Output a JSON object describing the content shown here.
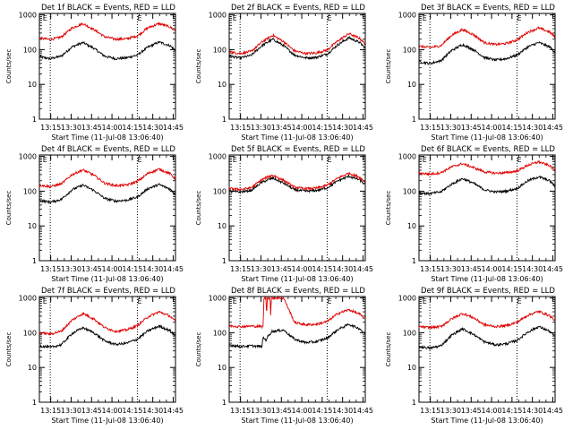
{
  "figure": {
    "shared": {
      "ylabel": "Counts/sec",
      "xlabel": "Start Time (11-Jul-08 13:06:40)",
      "x_ticks": [
        "13:15",
        "13:30",
        "13:45",
        "14:00",
        "14:15",
        "14:30",
        "14:45"
      ],
      "y_ticks": [
        "1",
        "10",
        "100",
        "1000"
      ]
    },
    "colors": {
      "events": "#000000",
      "lld": "#e00000",
      "axes": "#000000"
    }
  },
  "chart_data": [
    {
      "type": "line",
      "title": "Det 1f BLACK = Events, RED = LLD",
      "xlabel": "Start Time (11-Jul-08 13:06:40)",
      "ylabel": "Counts/sec",
      "x_unit": "minutes after 13:06:40",
      "xlim": [
        0,
        100
      ],
      "ylim": [
        1,
        1100
      ],
      "yscale": "log",
      "markers": [
        "E",
        "E"
      ],
      "marker_x": [
        2.5,
        72
      ],
      "vlines_x": [
        8,
        72
      ],
      "series": [
        {
          "name": "Events",
          "color": "#000000",
          "x": [
            0,
            8,
            16,
            24,
            32,
            40,
            48,
            56,
            64,
            72,
            80,
            88,
            96,
            100
          ],
          "y": [
            62,
            55,
            65,
            120,
            160,
            110,
            65,
            55,
            58,
            70,
            120,
            165,
            130,
            95
          ]
        },
        {
          "name": "LLD",
          "color": "#e00000",
          "x": [
            0,
            8,
            16,
            24,
            32,
            40,
            48,
            56,
            64,
            72,
            80,
            88,
            96,
            100
          ],
          "y": [
            215,
            195,
            230,
            420,
            560,
            380,
            235,
            200,
            205,
            250,
            430,
            560,
            450,
            340
          ]
        }
      ]
    },
    {
      "type": "line",
      "title": "Det 2f BLACK = Events, RED = LLD",
      "xlabel": "Start Time (11-Jul-08 13:06:40)",
      "ylabel": "Counts/sec",
      "x_unit": "minutes after 13:06:40",
      "xlim": [
        0,
        100
      ],
      "ylim": [
        1,
        1100
      ],
      "yscale": "log",
      "markers": [
        "E",
        "E"
      ],
      "marker_x": [
        2.5,
        72
      ],
      "vlines_x": [
        8,
        72
      ],
      "series": [
        {
          "name": "Events",
          "color": "#000000",
          "x": [
            0,
            8,
            16,
            24,
            32,
            40,
            48,
            56,
            64,
            72,
            80,
            88,
            96,
            100
          ],
          "y": [
            65,
            58,
            68,
            130,
            200,
            130,
            70,
            58,
            60,
            75,
            140,
            220,
            160,
            110
          ]
        },
        {
          "name": "LLD",
          "color": "#e00000",
          "x": [
            0,
            8,
            16,
            24,
            32,
            40,
            48,
            56,
            64,
            72,
            80,
            88,
            96,
            100
          ],
          "y": [
            85,
            78,
            88,
            165,
            260,
            170,
            92,
            78,
            80,
            98,
            180,
            290,
            210,
            145
          ]
        }
      ]
    },
    {
      "type": "line",
      "title": "Det 3f BLACK = Events, RED = LLD",
      "xlabel": "Start Time (11-Jul-08 13:06:40)",
      "ylabel": "Counts/sec",
      "x_unit": "minutes after 13:06:40",
      "xlim": [
        0,
        100
      ],
      "ylim": [
        1,
        1100
      ],
      "yscale": "log",
      "markers": [
        "E",
        "E"
      ],
      "marker_x": [
        2.5,
        72
      ],
      "vlines_x": [
        8,
        72
      ],
      "series": [
        {
          "name": "Events",
          "color": "#000000",
          "x": [
            0,
            8,
            16,
            24,
            32,
            40,
            48,
            56,
            64,
            72,
            80,
            88,
            96,
            100
          ],
          "y": [
            45,
            40,
            48,
            95,
            140,
            100,
            60,
            50,
            55,
            70,
            120,
            160,
            120,
            85
          ]
        },
        {
          "name": "LLD",
          "color": "#e00000",
          "x": [
            0,
            8,
            16,
            24,
            32,
            40,
            48,
            56,
            64,
            72,
            80,
            88,
            96,
            100
          ],
          "y": [
            125,
            115,
            130,
            260,
            380,
            270,
            160,
            140,
            150,
            190,
            320,
            420,
            320,
            230
          ]
        }
      ]
    },
    {
      "type": "line",
      "title": "Det 4f BLACK = Events, RED = LLD",
      "xlabel": "Start Time (11-Jul-08 13:06:40)",
      "ylabel": "Counts/sec",
      "x_unit": "minutes after 13:06:40",
      "xlim": [
        0,
        100
      ],
      "ylim": [
        1,
        1100
      ],
      "yscale": "log",
      "markers": [
        "E",
        "E"
      ],
      "marker_x": [
        2.5,
        72
      ],
      "vlines_x": [
        8,
        72
      ],
      "series": [
        {
          "name": "Events",
          "color": "#000000",
          "x": [
            0,
            8,
            16,
            24,
            32,
            40,
            48,
            56,
            64,
            72,
            80,
            88,
            96,
            100
          ],
          "y": [
            55,
            48,
            58,
            110,
            150,
            105,
            62,
            52,
            55,
            68,
            120,
            155,
            115,
            80
          ]
        },
        {
          "name": "LLD",
          "color": "#e00000",
          "x": [
            0,
            8,
            16,
            24,
            32,
            40,
            48,
            56,
            64,
            72,
            80,
            88,
            96,
            100
          ],
          "y": [
            150,
            135,
            160,
            300,
            410,
            290,
            170,
            145,
            150,
            190,
            330,
            430,
            320,
            225
          ]
        }
      ]
    },
    {
      "type": "line",
      "title": "Det 5f BLACK = Events, RED = LLD",
      "xlabel": "Start Time (11-Jul-08 13:06:40)",
      "ylabel": "Counts/sec",
      "x_unit": "minutes after 13:06:40",
      "xlim": [
        0,
        100
      ],
      "ylim": [
        1,
        1100
      ],
      "yscale": "log",
      "markers": [
        "E",
        "E"
      ],
      "marker_x": [
        2.5,
        72
      ],
      "vlines_x": [
        8,
        72
      ],
      "series": [
        {
          "name": "Events",
          "color": "#000000",
          "x": [
            0,
            8,
            16,
            24,
            32,
            40,
            48,
            56,
            64,
            72,
            80,
            88,
            96,
            100
          ],
          "y": [
            100,
            95,
            105,
            180,
            240,
            170,
            110,
            100,
            105,
            125,
            200,
            270,
            210,
            150
          ]
        },
        {
          "name": "LLD",
          "color": "#e00000",
          "x": [
            0,
            8,
            16,
            24,
            32,
            40,
            48,
            56,
            64,
            72,
            80,
            88,
            96,
            100
          ],
          "y": [
            120,
            112,
            125,
            215,
            290,
            205,
            130,
            118,
            122,
            148,
            240,
            330,
            250,
            180
          ]
        }
      ]
    },
    {
      "type": "line",
      "title": "Det 6f BLACK = Events, RED = LLD",
      "xlabel": "Start Time (11-Jul-08 13:06:40)",
      "ylabel": "Counts/sec",
      "x_unit": "minutes after 13:06:40",
      "xlim": [
        0,
        100
      ],
      "ylim": [
        1,
        1100
      ],
      "yscale": "log",
      "markers": [
        "E",
        "E"
      ],
      "marker_x": [
        2.5,
        72
      ],
      "vlines_x": [
        8,
        72
      ],
      "series": [
        {
          "name": "Events",
          "color": "#000000",
          "x": [
            0,
            8,
            16,
            24,
            32,
            40,
            48,
            56,
            64,
            72,
            80,
            88,
            96,
            100
          ],
          "y": [
            90,
            85,
            95,
            160,
            230,
            170,
            110,
            95,
            100,
            120,
            200,
            260,
            200,
            140
          ]
        },
        {
          "name": "LLD",
          "color": "#e00000",
          "x": [
            0,
            8,
            16,
            24,
            32,
            40,
            48,
            56,
            64,
            72,
            80,
            88,
            96,
            100
          ],
          "y": [
            330,
            310,
            340,
            500,
            620,
            480,
            360,
            330,
            340,
            380,
            560,
            700,
            540,
            400
          ]
        }
      ]
    },
    {
      "type": "line",
      "title": "Det 7f BLACK = Events, RED = LLD",
      "xlabel": "Start Time (11-Jul-08 13:06:40)",
      "ylabel": "Counts/sec",
      "x_unit": "minutes after 13:06:40",
      "xlim": [
        0,
        100
      ],
      "ylim": [
        1,
        1100
      ],
      "yscale": "log",
      "markers": [
        "E",
        "E"
      ],
      "marker_x": [
        2.5,
        72
      ],
      "vlines_x": [
        8,
        72
      ],
      "series": [
        {
          "name": "Events",
          "color": "#000000",
          "x": [
            0,
            8,
            16,
            24,
            32,
            40,
            48,
            56,
            64,
            72,
            80,
            88,
            96,
            100
          ],
          "y": [
            42,
            38,
            45,
            95,
            140,
            100,
            58,
            46,
            50,
            65,
            115,
            155,
            115,
            80
          ]
        },
        {
          "name": "LLD",
          "color": "#e00000",
          "x": [
            0,
            8,
            16,
            24,
            32,
            40,
            48,
            56,
            64,
            72,
            80,
            88,
            96,
            100
          ],
          "y": [
            100,
            92,
            110,
            230,
            360,
            250,
            140,
            110,
            120,
            160,
            290,
            400,
            300,
            210
          ]
        }
      ]
    },
    {
      "type": "line",
      "title": "Det 8f BLACK = Events, RED = LLD",
      "xlabel": "Start Time (11-Jul-08 13:06:40)",
      "ylabel": "Counts/sec",
      "x_unit": "minutes after 13:06:40",
      "xlim": [
        0,
        100
      ],
      "ylim": [
        1,
        1100
      ],
      "yscale": "log",
      "markers": [
        "E",
        "E"
      ],
      "marker_x": [
        2.5,
        72
      ],
      "vlines_x": [
        8,
        72
      ],
      "series": [
        {
          "name": "Events",
          "color": "#000000",
          "x": [
            0,
            8,
            16,
            24,
            25,
            27,
            28,
            30,
            31,
            32,
            40,
            48,
            56,
            64,
            72,
            80,
            88,
            96,
            100
          ],
          "y": [
            45,
            40,
            42,
            40,
            75,
            60,
            75,
            90,
            110,
            110,
            120,
            65,
            52,
            55,
            70,
            125,
            175,
            130,
            90
          ]
        },
        {
          "name": "LLD",
          "color": "#e00000",
          "x": [
            0,
            8,
            16,
            24,
            25,
            25.5,
            27,
            27.5,
            28,
            30,
            30.5,
            31,
            32,
            40,
            48,
            56,
            64,
            72,
            80,
            88,
            96,
            100
          ],
          "y": [
            160,
            150,
            155,
            150,
            150,
            1000,
            1000,
            300,
            1000,
            1000,
            300,
            1000,
            1000,
            1000,
            200,
            170,
            175,
            210,
            360,
            460,
            340,
            240
          ]
        }
      ]
    },
    {
      "type": "line",
      "title": "Det 9f BLACK = Events, RED = LLD",
      "xlabel": "Start Time (11-Jul-08 13:06:40)",
      "ylabel": "Counts/sec",
      "x_unit": "minutes after 13:06:40",
      "xlim": [
        0,
        100
      ],
      "ylim": [
        1,
        1100
      ],
      "yscale": "log",
      "markers": [
        "E",
        "E"
      ],
      "marker_x": [
        2.5,
        72
      ],
      "vlines_x": [
        8,
        72
      ],
      "series": [
        {
          "name": "Events",
          "color": "#000000",
          "x": [
            0,
            8,
            16,
            24,
            32,
            40,
            48,
            56,
            64,
            72,
            80,
            88,
            96,
            100
          ],
          "y": [
            40,
            36,
            42,
            85,
            130,
            90,
            55,
            45,
            48,
            60,
            105,
            150,
            110,
            75
          ]
        },
        {
          "name": "LLD",
          "color": "#e00000",
          "x": [
            0,
            8,
            16,
            24,
            32,
            40,
            48,
            56,
            64,
            72,
            80,
            88,
            96,
            100
          ],
          "y": [
            150,
            140,
            150,
            250,
            360,
            270,
            170,
            150,
            160,
            200,
            320,
            410,
            310,
            220
          ]
        }
      ]
    }
  ]
}
